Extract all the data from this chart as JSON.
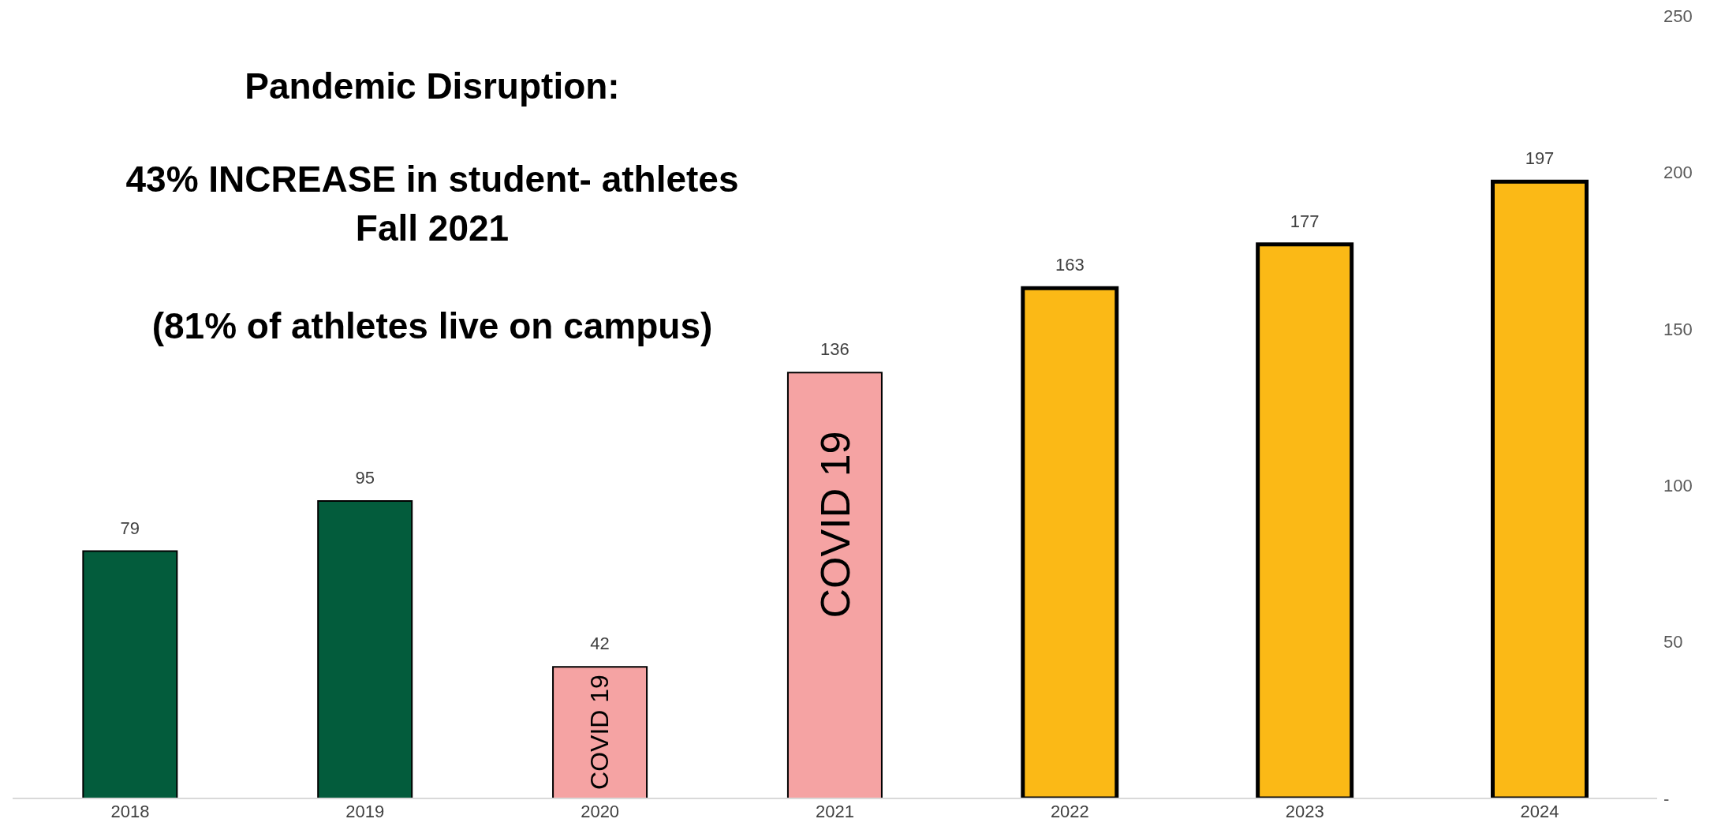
{
  "chart_data": {
    "type": "bar",
    "title": "Pandemic Disruption:",
    "categories": [
      "2018",
      "2019",
      "2020",
      "2021",
      "2022",
      "2023",
      "2024"
    ],
    "values": [
      79,
      95,
      42,
      136,
      163,
      177,
      197
    ],
    "colors": [
      "#035c3c",
      "#035c3c",
      "#f5a3a3",
      "#f5a3a3",
      "#fbb916",
      "#fbb916",
      "#fbb916"
    ],
    "ylim": [
      0,
      250
    ],
    "yticks": [
      {
        "value": 0,
        "label": "-"
      },
      50,
      100,
      150,
      200,
      250
    ],
    "data_labels": true,
    "grid": false,
    "annotations": [
      "43% INCREASE in student- athletes",
      "Fall 2021",
      "(81% of athletes live on campus)",
      "COVID 19",
      "COVID 19"
    ]
  }
}
